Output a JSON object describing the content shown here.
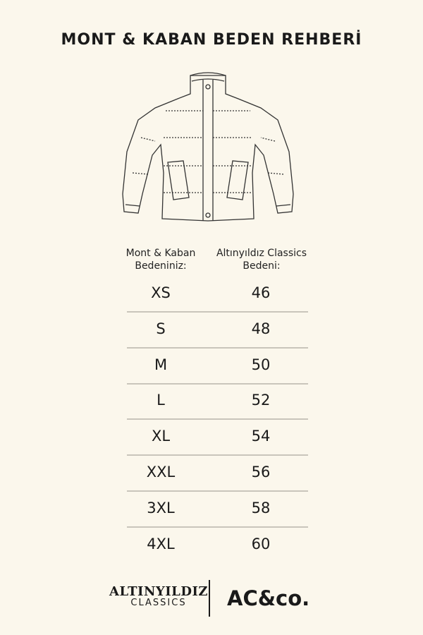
{
  "title": "MONT & KABAN BEDEN REHBERİ",
  "table": {
    "header_left": [
      "Mont & Kaban",
      "Bedeniniz:"
    ],
    "header_right": [
      "Altınyıldız Classics",
      "Bedeni:"
    ],
    "rows": [
      {
        "size": "XS",
        "ac": "46"
      },
      {
        "size": "S",
        "ac": "48"
      },
      {
        "size": "M",
        "ac": "50"
      },
      {
        "size": "L",
        "ac": "52"
      },
      {
        "size": "XL",
        "ac": "54"
      },
      {
        "size": "XXL",
        "ac": "56"
      },
      {
        "size": "3XL",
        "ac": "58"
      },
      {
        "size": "4XL",
        "ac": "60"
      }
    ]
  },
  "footer": {
    "logo1_main": "ALTINYILDIZ",
    "logo1_sub": "CLASSICS",
    "logo2": "AC&co."
  },
  "colors": {
    "background": "#fbf7ec",
    "text": "#1a1a1a",
    "divider": "#c9c5bb"
  }
}
